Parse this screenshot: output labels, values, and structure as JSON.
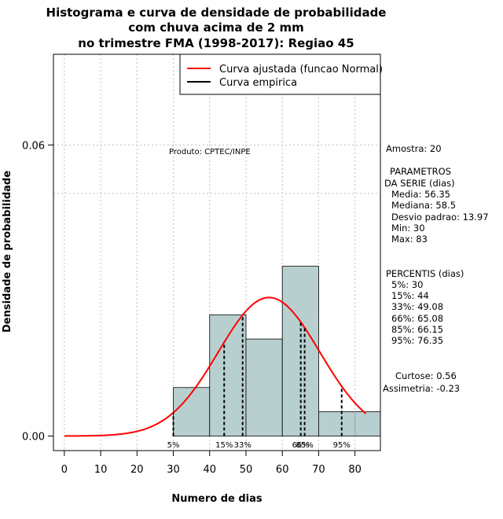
{
  "chart_data": {
    "type": "histogram",
    "title_lines": [
      "Histograma e curva de densidade de probabilidade",
      "com chuva acima de 2 mm",
      "no trimestre FMA (1998-2017): Regiao 45"
    ],
    "xlabel": "Numero de dias",
    "ylabel": "Densidade de probabilidade",
    "xlim": [
      -3,
      87
    ],
    "ylim": [
      -0.003,
      0.0787
    ],
    "x_ticks": [
      0,
      10,
      20,
      30,
      40,
      50,
      60,
      70,
      80
    ],
    "y_ticks": [
      0.0,
      0.06
    ],
    "y_tick_labels": [
      "0.00",
      "0.06"
    ],
    "hgrid": [
      0.06,
      0.05
    ],
    "bins": [
      {
        "x0": 30,
        "x1": 40,
        "density": 0.01
      },
      {
        "x0": 40,
        "x1": 50,
        "density": 0.025
      },
      {
        "x0": 50,
        "x1": 60,
        "density": 0.02
      },
      {
        "x0": 60,
        "x1": 70,
        "density": 0.035
      },
      {
        "x0": 70,
        "x1": 87,
        "density": 0.005
      }
    ],
    "normal_fit": {
      "mean": 56.35,
      "sd": 13.97,
      "x_range": [
        0,
        83
      ]
    },
    "legend": [
      {
        "label": "Curva ajustada (funcao Normal)",
        "color": "#ff0000"
      },
      {
        "label": "Curva empirica",
        "color": "#000000"
      }
    ],
    "percentile_marks": [
      {
        "label": "5%",
        "x": 30,
        "label_x": 30
      },
      {
        "label": "15%",
        "x": 44,
        "label_x": 44
      },
      {
        "label": "33%",
        "x": 49.08,
        "label_x": 49.08
      },
      {
        "label": "66%",
        "x": 65.08,
        "label_x": 65.08
      },
      {
        "label": "85%",
        "x": 66.15,
        "label_x": 66.15
      },
      {
        "label": "95%",
        "x": 76.35,
        "label_x": 76.35
      }
    ],
    "product_label": "Produto: CPTEC/INPE",
    "stats": {
      "amostra": "Amostra: 20",
      "param_title_1": "PARAMETROS",
      "param_title_2": "DA SERIE (dias)",
      "media": "Media: 56.35",
      "mediana": "Mediana: 58.5",
      "desvio": "Desvio padrao: 13.97",
      "min": "Min: 30",
      "max": "Max: 83",
      "perc_title": "PERCENTIS (dias)",
      "p5": "5%: 30",
      "p15": "15%: 44",
      "p33": "33%: 49.08",
      "p66": "66%: 65.08",
      "p85": "85%: 66.15",
      "p95": "95%: 76.35",
      "curtose": "Curtose: 0.56",
      "assimetria": "Assimetria: -0.23"
    },
    "colors": {
      "bar_fill": "#b8cfcf",
      "curve": "#ff0000",
      "grid": "#c0c0c0"
    }
  }
}
